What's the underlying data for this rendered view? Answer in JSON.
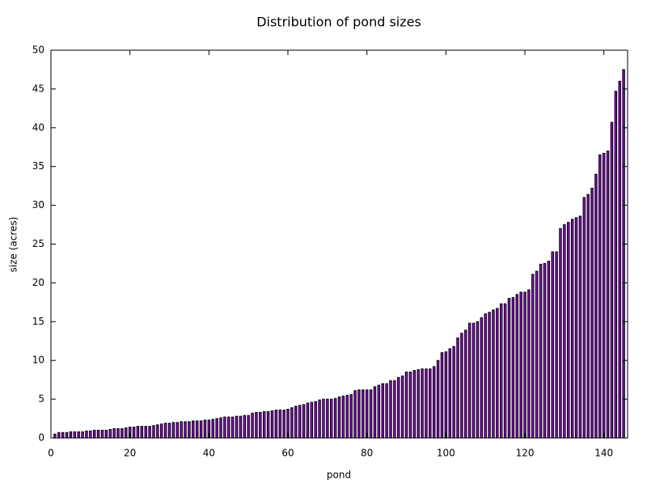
{
  "chart_data": {
    "type": "bar",
    "title": "Distribution of pond sizes",
    "x_label": "pond",
    "y_label": "size (acres)",
    "x": [
      1,
      2,
      3,
      4,
      5,
      6,
      7,
      8,
      9,
      10,
      11,
      12,
      13,
      14,
      15,
      16,
      17,
      18,
      19,
      20,
      21,
      22,
      23,
      24,
      25,
      26,
      27,
      28,
      29,
      30,
      31,
      32,
      33,
      34,
      35,
      36,
      37,
      38,
      39,
      40,
      41,
      42,
      43,
      44,
      45,
      46,
      47,
      48,
      49,
      50,
      51,
      52,
      53,
      54,
      55,
      56,
      57,
      58,
      59,
      60,
      61,
      62,
      63,
      64,
      65,
      66,
      67,
      68,
      69,
      70,
      71,
      72,
      73,
      74,
      75,
      76,
      77,
      78,
      79,
      80,
      81,
      82,
      83,
      84,
      85,
      86,
      87,
      88,
      89,
      90,
      91,
      92,
      93,
      94,
      95,
      96,
      97,
      98,
      99,
      100,
      101,
      102,
      103,
      104,
      105,
      106,
      107,
      108,
      109,
      110,
      111,
      112,
      113,
      114,
      115,
      116,
      117,
      118,
      119,
      120,
      121,
      122,
      123,
      124,
      125,
      126,
      127,
      128,
      129,
      130,
      131,
      132,
      133,
      134,
      135,
      136,
      137,
      138,
      139,
      140,
      141,
      142,
      143,
      144,
      145
    ],
    "values": [
      0.5,
      0.7,
      0.7,
      0.7,
      0.8,
      0.8,
      0.8,
      0.8,
      0.9,
      0.9,
      1.0,
      1.0,
      1.0,
      1.0,
      1.1,
      1.2,
      1.2,
      1.2,
      1.3,
      1.4,
      1.4,
      1.5,
      1.5,
      1.5,
      1.5,
      1.6,
      1.7,
      1.8,
      1.9,
      1.9,
      2.0,
      2.0,
      2.1,
      2.1,
      2.1,
      2.2,
      2.2,
      2.2,
      2.3,
      2.3,
      2.4,
      2.5,
      2.6,
      2.7,
      2.7,
      2.7,
      2.8,
      2.8,
      2.9,
      2.9,
      3.2,
      3.3,
      3.3,
      3.4,
      3.4,
      3.5,
      3.6,
      3.6,
      3.6,
      3.7,
      3.9,
      4.1,
      4.2,
      4.3,
      4.5,
      4.6,
      4.7,
      4.9,
      5.0,
      5.0,
      5.0,
      5.1,
      5.3,
      5.4,
      5.5,
      5.6,
      6.1,
      6.2,
      6.2,
      6.2,
      6.2,
      6.6,
      6.8,
      7.0,
      7.0,
      7.4,
      7.4,
      7.8,
      8.0,
      8.5,
      8.5,
      8.7,
      8.8,
      8.9,
      8.9,
      8.9,
      9.2,
      10.0,
      11.0,
      11.1,
      11.5,
      11.8,
      12.9,
      13.5,
      13.9,
      14.8,
      14.8,
      15.0,
      15.5,
      16.0,
      16.2,
      16.5,
      16.7,
      17.3,
      17.3,
      18.0,
      18.1,
      18.5,
      18.8,
      18.8,
      19.1,
      21.1,
      21.5,
      22.4,
      22.5,
      22.8,
      24.0,
      24.0,
      27.0,
      27.5,
      27.8,
      28.2,
      28.4,
      28.6,
      31.0,
      31.4,
      32.2,
      34.0,
      36.5,
      36.7,
      37.0,
      40.7,
      44.7,
      46.0,
      47.5
    ],
    "color": "#9400d3",
    "xlim": [
      0,
      146
    ],
    "xticks": [
      0,
      20,
      40,
      60,
      80,
      100,
      120,
      140
    ],
    "ylim": [
      0,
      50
    ],
    "yticks": [
      0,
      5,
      10,
      15,
      20,
      25,
      30,
      35,
      40,
      45,
      50
    ]
  }
}
